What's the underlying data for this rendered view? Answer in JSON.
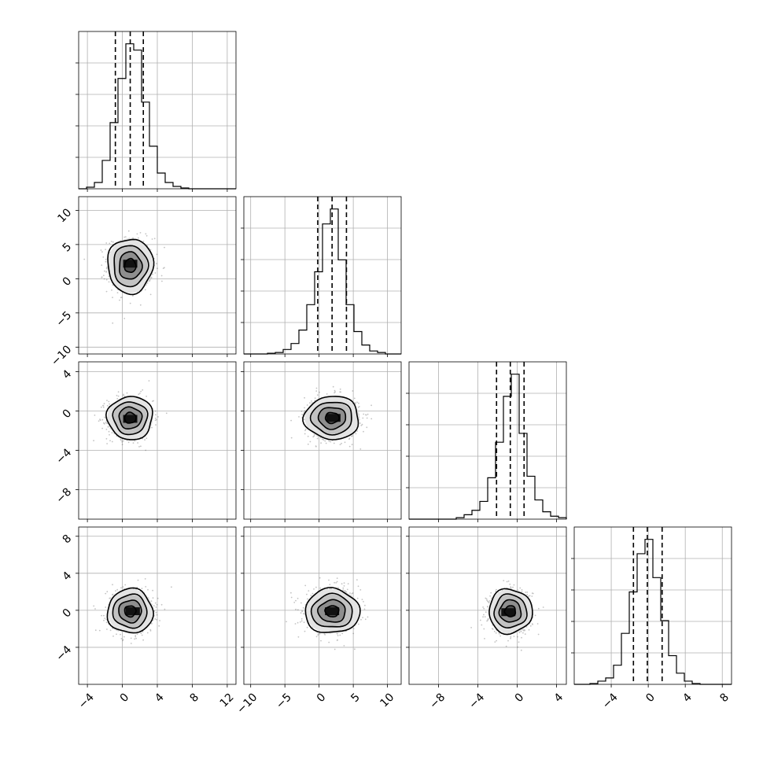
{
  "chart_data": {
    "type": "corner",
    "title": "",
    "grid": true,
    "parameters": [
      {
        "index": 0,
        "range": [
          -5,
          13
        ],
        "ticks": [
          -4,
          0,
          4,
          8,
          12
        ],
        "tick_labels": [
          "−4",
          "0",
          "4",
          "8",
          "12"
        ],
        "quantiles": [
          -0.8,
          0.9,
          2.4
        ],
        "hist_edges": [
          -5,
          -4.1,
          -3.2,
          -2.3,
          -1.4,
          -0.5,
          0.4,
          1.3,
          2.2,
          3.1,
          4.0,
          4.9,
          5.8,
          6.7,
          7.6,
          8.5,
          9.4,
          10.3,
          11.2,
          12.1,
          13
        ],
        "hist_counts": [
          0.0,
          0.01,
          0.04,
          0.18,
          0.42,
          0.7,
          0.92,
          0.88,
          0.55,
          0.27,
          0.1,
          0.04,
          0.015,
          0.005,
          0.0,
          0.0,
          0.0,
          0.0,
          0.0,
          0.0
        ]
      },
      {
        "index": 1,
        "range": [
          -11,
          12
        ],
        "ticks": [
          -10,
          -5,
          0,
          5,
          10
        ],
        "tick_labels": [
          "−10",
          "−5",
          "0",
          "5",
          "10"
        ],
        "quantiles": [
          -0.2,
          1.9,
          4.0
        ],
        "hist_edges": [
          -11,
          -9.85,
          -8.7,
          -7.55,
          -6.4,
          -5.25,
          -4.1,
          -2.95,
          -1.8,
          -0.65,
          0.5,
          1.65,
          2.8,
          3.95,
          5.1,
          6.25,
          7.4,
          8.55,
          9.7,
          10.85,
          12
        ],
        "hist_counts": [
          0.0,
          0.0,
          0.0,
          0.005,
          0.01,
          0.03,
          0.07,
          0.16,
          0.33,
          0.55,
          0.87,
          0.97,
          0.63,
          0.33,
          0.15,
          0.06,
          0.02,
          0.01,
          0.0,
          0.0
        ]
      },
      {
        "index": 2,
        "range": [
          -11,
          5
        ],
        "ticks": [
          -8,
          -4,
          0,
          4
        ],
        "tick_labels": [
          "−8",
          "−4",
          "0",
          "4"
        ],
        "quantiles": [
          -2.1,
          -0.7,
          0.7
        ],
        "hist_edges": [
          -11,
          -10.2,
          -9.4,
          -8.6,
          -7.8,
          -7.0,
          -6.2,
          -5.4,
          -4.6,
          -3.8,
          -3.0,
          -2.2,
          -1.4,
          -0.6,
          0.2,
          1.0,
          1.8,
          2.6,
          3.4,
          4.2,
          5
        ],
        "hist_counts": [
          0.0,
          0.0,
          0.0,
          0.0,
          0.0,
          0.0,
          0.01,
          0.03,
          0.06,
          0.12,
          0.28,
          0.52,
          0.83,
          0.98,
          0.58,
          0.29,
          0.13,
          0.05,
          0.02,
          0.01
        ]
      },
      {
        "index": 3,
        "range": [
          -8,
          9
        ],
        "ticks": [
          -4,
          0,
          4,
          8
        ],
        "tick_labels": [
          "−4",
          "0",
          "4",
          "8"
        ],
        "quantiles": [
          -1.6,
          -0.1,
          1.5
        ],
        "hist_edges": [
          -8,
          -7.15,
          -6.3,
          -5.45,
          -4.6,
          -3.75,
          -2.9,
          -2.05,
          -1.2,
          -0.35,
          0.5,
          1.35,
          2.2,
          3.05,
          3.9,
          4.75,
          5.6,
          6.45,
          7.3,
          8.15,
          9
        ],
        "hist_counts": [
          0.0,
          0.0,
          0.005,
          0.02,
          0.04,
          0.12,
          0.32,
          0.58,
          0.82,
          0.91,
          0.67,
          0.4,
          0.18,
          0.07,
          0.02,
          0.005,
          0.0,
          0.0,
          0.0,
          0.0
        ]
      }
    ],
    "pairs": [
      {
        "x": 0,
        "y": 1,
        "center": [
          0.9,
          1.9
        ],
        "sigma": [
          1.3,
          2.0
        ],
        "peak_cell": [
          0.9,
          2.2
        ]
      },
      {
        "x": 0,
        "y": 2,
        "center": [
          0.9,
          -0.7
        ],
        "sigma": [
          1.3,
          1.1
        ],
        "peak_cell": [
          0.9,
          -0.8
        ]
      },
      {
        "x": 1,
        "y": 2,
        "center": [
          1.9,
          -0.7
        ],
        "sigma": [
          2.0,
          1.1
        ],
        "peak_cell": [
          2.1,
          -0.7
        ]
      },
      {
        "x": 0,
        "y": 3,
        "center": [
          0.9,
          -0.1
        ],
        "sigma": [
          1.3,
          1.2
        ],
        "peak_cell": [
          1.2,
          -0.1
        ]
      },
      {
        "x": 1,
        "y": 3,
        "center": [
          1.9,
          -0.1
        ],
        "sigma": [
          2.0,
          1.2
        ],
        "peak_cell": [
          1.9,
          -0.1
        ]
      },
      {
        "x": 2,
        "y": 3,
        "center": [
          -0.7,
          -0.1
        ],
        "sigma": [
          1.1,
          1.2
        ],
        "peak_cell": [
          -0.9,
          -0.2
        ]
      }
    ],
    "contour_levels_sigma": [
      0.5,
      1.0,
      1.5,
      2.0
    ]
  }
}
